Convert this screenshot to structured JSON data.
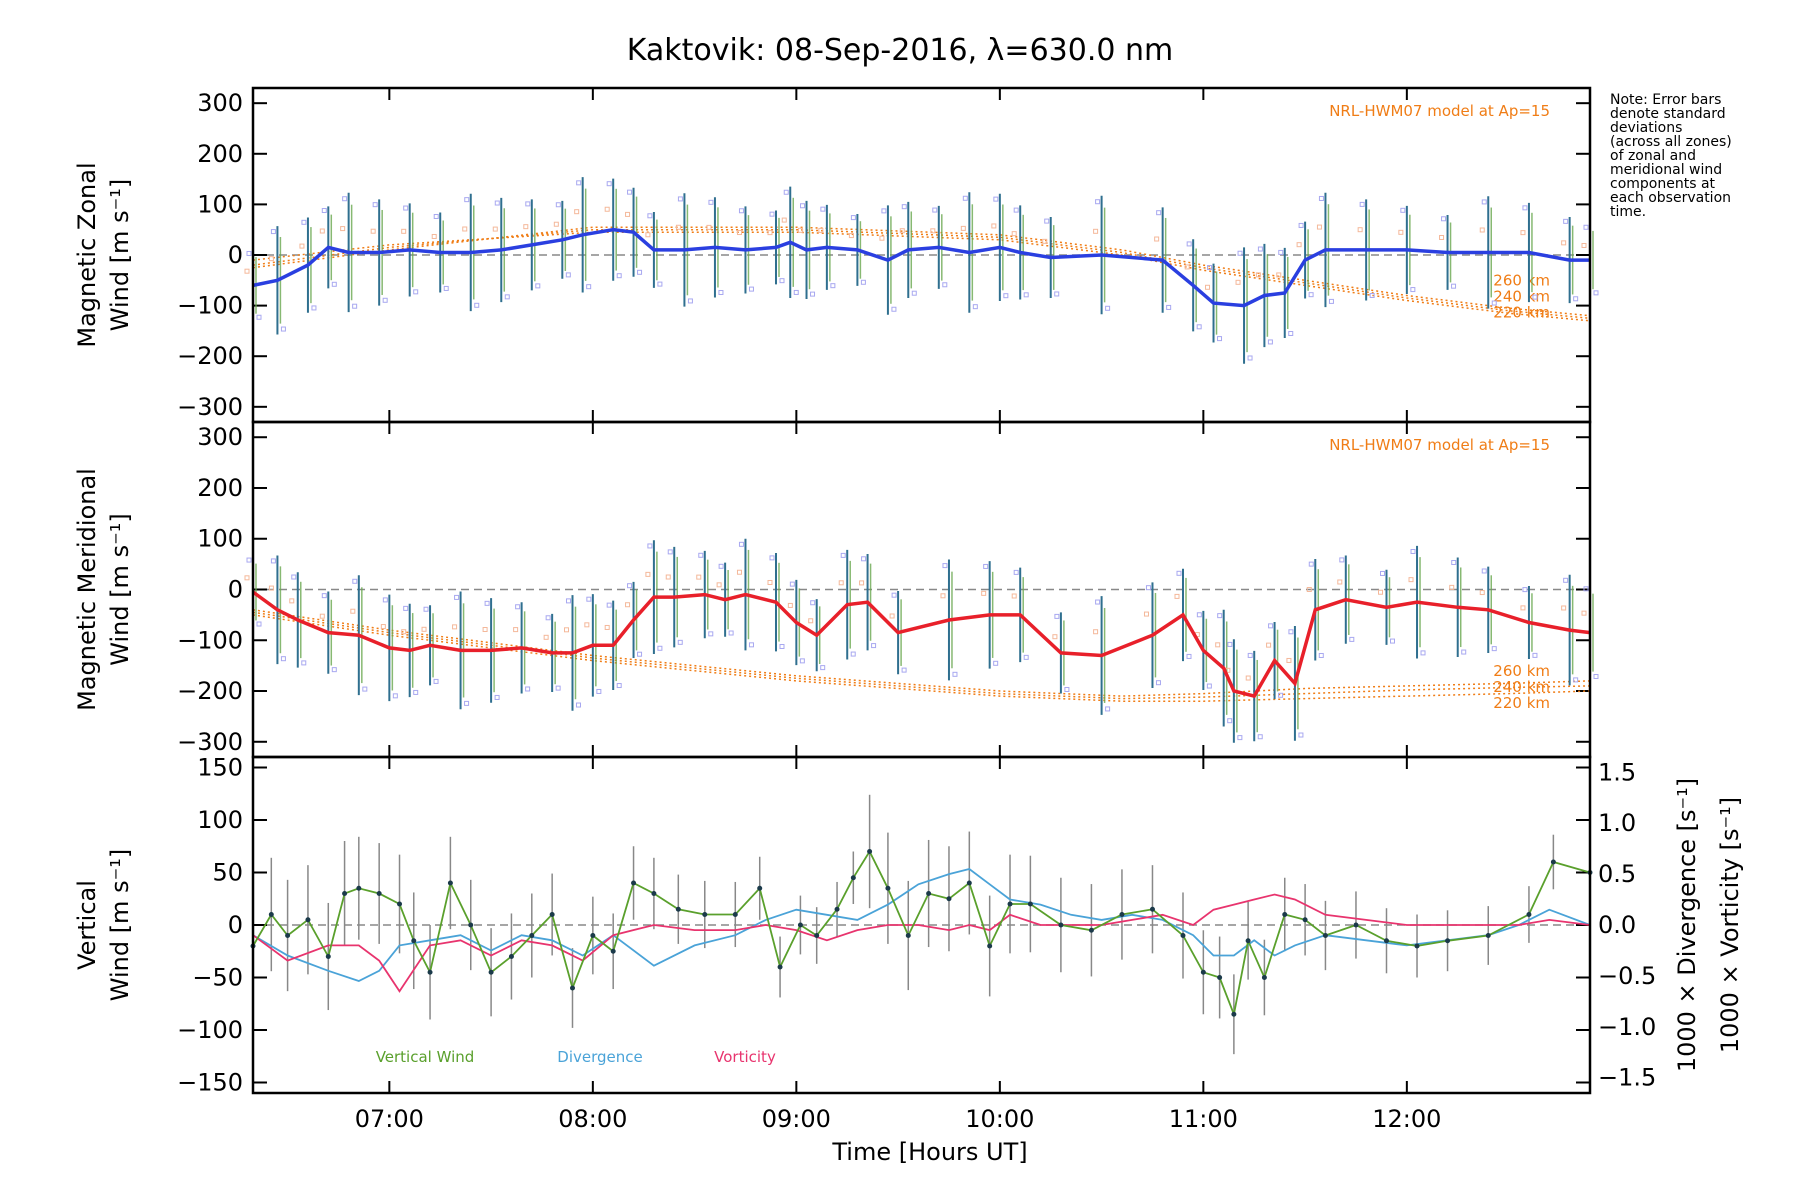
{
  "title": "Kaktovik: 08-Sep-2016, λ=630.0 nm",
  "note": [
    "Note: Error bars",
    "denote standard",
    "deviations",
    "(across all zones)",
    "of zonal and",
    "meridional wind",
    "components at",
    "each observation",
    "time."
  ],
  "colors": {
    "zonal": "#2a3fe0",
    "meridional": "#e8202a",
    "model": "#f07d16",
    "vertical": "#5aa02c",
    "divergence": "#4aa3d8",
    "vorticity": "#e8346e",
    "zero_line": "#888888"
  },
  "x_axis": {
    "label": "Time [Hours UT]",
    "range": [
      6.33,
      12.9
    ],
    "ticks": [
      7,
      8,
      9,
      10,
      11,
      12
    ],
    "tick_labels": [
      "07:00",
      "08:00",
      "09:00",
      "10:00",
      "11:00",
      "12:00"
    ]
  },
  "chart_data": [
    {
      "type": "line",
      "name": "zonal",
      "ylabel_line1": "Magnetic Zonal",
      "ylabel_line2": "Wind [m s⁻¹]",
      "ylim": [
        -330,
        330
      ],
      "yticks": [
        -300,
        -200,
        -100,
        0,
        100,
        200,
        300
      ],
      "model_label": "NRL-HWM07 model at Ap=15",
      "model_altitudes": [
        "260 km",
        "240 km",
        "220 km"
      ],
      "model_series": [
        {
          "x": [
            6.33,
            7.0,
            8.0,
            9.0,
            10.0,
            10.6,
            11.0,
            11.5,
            12.0,
            12.5,
            12.9
          ],
          "y": [
            -10,
            20,
            45,
            45,
            30,
            0,
            -30,
            -60,
            -90,
            -115,
            -130
          ]
        },
        {
          "x": [
            6.33,
            7.0,
            8.0,
            9.0,
            10.0,
            10.6,
            11.0,
            11.5,
            12.0,
            12.5,
            12.9
          ],
          "y": [
            -20,
            15,
            50,
            50,
            35,
            5,
            -25,
            -55,
            -85,
            -110,
            -125
          ]
        },
        {
          "x": [
            6.33,
            7.0,
            8.0,
            9.0,
            10.0,
            10.6,
            11.0,
            11.5,
            12.0,
            12.5,
            12.9
          ],
          "y": [
            -25,
            10,
            55,
            55,
            40,
            10,
            -20,
            -50,
            -80,
            -105,
            -120
          ]
        }
      ],
      "series": [
        {
          "x": [
            6.33,
            6.45,
            6.6,
            6.7,
            6.8,
            6.95,
            7.1,
            7.25,
            7.4,
            7.55,
            7.7,
            7.85,
            7.95,
            8.1,
            8.2,
            8.3,
            8.45,
            8.6,
            8.75,
            8.9,
            8.97,
            9.05,
            9.15,
            9.3,
            9.45,
            9.55,
            9.7,
            9.85,
            10.0,
            10.1,
            10.25,
            10.5,
            10.8,
            10.95,
            11.05,
            11.2,
            11.3,
            11.4,
            11.5,
            11.6,
            11.8,
            12.0,
            12.2,
            12.4,
            12.6,
            12.8,
            12.9
          ],
          "y": [
            -60,
            -50,
            -20,
            15,
            5,
            5,
            10,
            5,
            5,
            10,
            20,
            30,
            40,
            50,
            45,
            10,
            10,
            15,
            10,
            15,
            25,
            10,
            15,
            10,
            -10,
            10,
            15,
            5,
            15,
            5,
            -5,
            0,
            -10,
            -60,
            -95,
            -100,
            -80,
            -75,
            -10,
            10,
            10,
            10,
            5,
            5,
            5,
            -10,
            -10
          ]
        }
      ]
    },
    {
      "type": "line",
      "name": "meridional",
      "ylabel_line1": "Magnetic Meridional",
      "ylabel_line2": "Wind [m s⁻¹]",
      "ylim": [
        -330,
        330
      ],
      "yticks": [
        -300,
        -200,
        -100,
        0,
        100,
        200,
        300
      ],
      "model_label": "NRL-HWM07 model at Ap=15",
      "model_altitudes": [
        "260 km",
        "240 km",
        "220 km"
      ],
      "model_series": [
        {
          "x": [
            6.33,
            7.0,
            8.0,
            9.0,
            10.0,
            10.6,
            11.0,
            11.5,
            12.0,
            12.5,
            12.9
          ],
          "y": [
            -40,
            -80,
            -130,
            -170,
            -200,
            -210,
            -205,
            -195,
            -190,
            -185,
            -180
          ]
        },
        {
          "x": [
            6.33,
            7.0,
            8.0,
            9.0,
            10.0,
            10.6,
            11.0,
            11.5,
            12.0,
            12.5,
            12.9
          ],
          "y": [
            -45,
            -85,
            -135,
            -175,
            -205,
            -215,
            -212,
            -205,
            -198,
            -193,
            -190
          ]
        },
        {
          "x": [
            6.33,
            7.0,
            8.0,
            9.0,
            10.0,
            10.6,
            11.0,
            11.5,
            12.0,
            12.5,
            12.9
          ],
          "y": [
            -50,
            -90,
            -140,
            -180,
            -210,
            -220,
            -220,
            -215,
            -210,
            -205,
            -200
          ]
        }
      ],
      "series": [
        {
          "x": [
            6.33,
            6.45,
            6.55,
            6.7,
            6.85,
            7.0,
            7.1,
            7.2,
            7.35,
            7.5,
            7.65,
            7.8,
            7.9,
            8.0,
            8.1,
            8.2,
            8.3,
            8.4,
            8.55,
            8.65,
            8.75,
            8.9,
            9.0,
            9.1,
            9.25,
            9.35,
            9.5,
            9.75,
            9.95,
            10.1,
            10.3,
            10.5,
            10.75,
            10.9,
            11.0,
            11.1,
            11.15,
            11.25,
            11.35,
            11.45,
            11.55,
            11.7,
            11.9,
            12.05,
            12.25,
            12.4,
            12.6,
            12.8,
            12.9
          ],
          "y": [
            -5,
            -40,
            -60,
            -85,
            -90,
            -115,
            -120,
            -110,
            -120,
            -120,
            -115,
            -125,
            -125,
            -110,
            -110,
            -60,
            -15,
            -15,
            -10,
            -20,
            -10,
            -25,
            -65,
            -90,
            -30,
            -25,
            -85,
            -60,
            -50,
            -50,
            -125,
            -130,
            -90,
            -50,
            -120,
            -155,
            -200,
            -210,
            -140,
            -185,
            -40,
            -20,
            -35,
            -25,
            -35,
            -40,
            -65,
            -80,
            -85
          ]
        }
      ]
    },
    {
      "type": "line",
      "name": "vertical",
      "ylabel_line1": "Vertical",
      "ylabel_line2": "Wind [m s⁻¹]",
      "ylim": [
        -160,
        160
      ],
      "yticks": [
        -150,
        -100,
        -50,
        0,
        50,
        100,
        150
      ],
      "right_axis_ticks": [
        "1.5",
        "1.0",
        "0.5",
        "0.0",
        "−0.5",
        "−1.0",
        "−1.5"
      ],
      "right_label_divergence": "1000 × Divergence [s⁻¹]",
      "right_label_vorticity": "1000 × Vorticity [s⁻¹]",
      "legend": [
        "Vertical Wind",
        "Divergence",
        "Vorticity"
      ],
      "series": [
        {
          "name": "Vertical Wind",
          "x": [
            6.33,
            6.42,
            6.5,
            6.6,
            6.7,
            6.78,
            6.85,
            6.95,
            7.05,
            7.12,
            7.2,
            7.3,
            7.4,
            7.5,
            7.6,
            7.7,
            7.8,
            7.9,
            8.0,
            8.1,
            8.2,
            8.3,
            8.42,
            8.55,
            8.7,
            8.82,
            8.92,
            9.02,
            9.1,
            9.2,
            9.28,
            9.36,
            9.45,
            9.55,
            9.65,
            9.75,
            9.85,
            9.95,
            10.05,
            10.15,
            10.3,
            10.45,
            10.6,
            10.75,
            10.9,
            11.0,
            11.08,
            11.15,
            11.22,
            11.3,
            11.4,
            11.5,
            11.6,
            11.75,
            11.9,
            12.05,
            12.2,
            12.4,
            12.6,
            12.72,
            12.9
          ],
          "y": [
            -20,
            10,
            -10,
            5,
            -30,
            30,
            35,
            30,
            20,
            -15,
            -45,
            40,
            0,
            -45,
            -30,
            -10,
            10,
            -60,
            -10,
            -25,
            40,
            30,
            15,
            10,
            10,
            35,
            -40,
            0,
            -10,
            15,
            45,
            70,
            35,
            -10,
            30,
            25,
            40,
            -20,
            20,
            20,
            0,
            -5,
            10,
            15,
            -10,
            -45,
            -50,
            -85,
            -15,
            -50,
            10,
            5,
            -10,
            0,
            -15,
            -20,
            -15,
            -10,
            10,
            60,
            50
          ]
        },
        {
          "name": "Divergence",
          "x": [
            6.33,
            6.5,
            6.7,
            6.85,
            6.95,
            7.05,
            7.2,
            7.35,
            7.5,
            7.65,
            7.8,
            7.95,
            8.1,
            8.3,
            8.5,
            8.7,
            8.85,
            9.0,
            9.15,
            9.3,
            9.45,
            9.6,
            9.75,
            9.85,
            9.95,
            10.05,
            10.2,
            10.35,
            10.5,
            10.65,
            10.8,
            10.95,
            11.05,
            11.15,
            11.25,
            11.35,
            11.45,
            11.6,
            11.8,
            12.0,
            12.2,
            12.4,
            12.55,
            12.7,
            12.9
          ],
          "y": [
            -0.1,
            -0.3,
            -0.45,
            -0.55,
            -0.45,
            -0.2,
            -0.15,
            -0.1,
            -0.25,
            -0.1,
            -0.15,
            -0.3,
            -0.1,
            -0.4,
            -0.2,
            -0.1,
            0.05,
            0.15,
            0.1,
            0.05,
            0.2,
            0.4,
            0.5,
            0.55,
            0.4,
            0.25,
            0.2,
            0.1,
            0.05,
            0.1,
            0.05,
            -0.1,
            -0.3,
            -0.3,
            -0.15,
            -0.3,
            -0.2,
            -0.1,
            -0.15,
            -0.2,
            -0.15,
            -0.1,
            0.0,
            0.15,
            0.0
          ]
        },
        {
          "name": "Vorticity",
          "x": [
            6.33,
            6.5,
            6.7,
            6.85,
            6.95,
            7.05,
            7.2,
            7.35,
            7.5,
            7.65,
            7.8,
            7.95,
            8.1,
            8.3,
            8.5,
            8.7,
            8.85,
            9.0,
            9.15,
            9.3,
            9.45,
            9.6,
            9.75,
            9.85,
            9.95,
            10.05,
            10.2,
            10.35,
            10.5,
            10.65,
            10.8,
            10.95,
            11.05,
            11.15,
            11.25,
            11.35,
            11.45,
            11.6,
            11.8,
            12.0,
            12.2,
            12.4,
            12.55,
            12.7,
            12.9
          ],
          "y": [
            -0.1,
            -0.35,
            -0.2,
            -0.2,
            -0.35,
            -0.65,
            -0.2,
            -0.15,
            -0.3,
            -0.15,
            -0.2,
            -0.35,
            -0.1,
            0.0,
            -0.05,
            -0.05,
            0.0,
            -0.05,
            -0.15,
            -0.05,
            0.0,
            0.0,
            -0.05,
            0.0,
            -0.05,
            0.1,
            0.0,
            0.0,
            0.0,
            0.05,
            0.1,
            0.0,
            0.15,
            0.2,
            0.25,
            0.3,
            0.25,
            0.1,
            0.05,
            0.0,
            0.0,
            0.0,
            0.0,
            0.05,
            0.0
          ]
        }
      ]
    }
  ]
}
